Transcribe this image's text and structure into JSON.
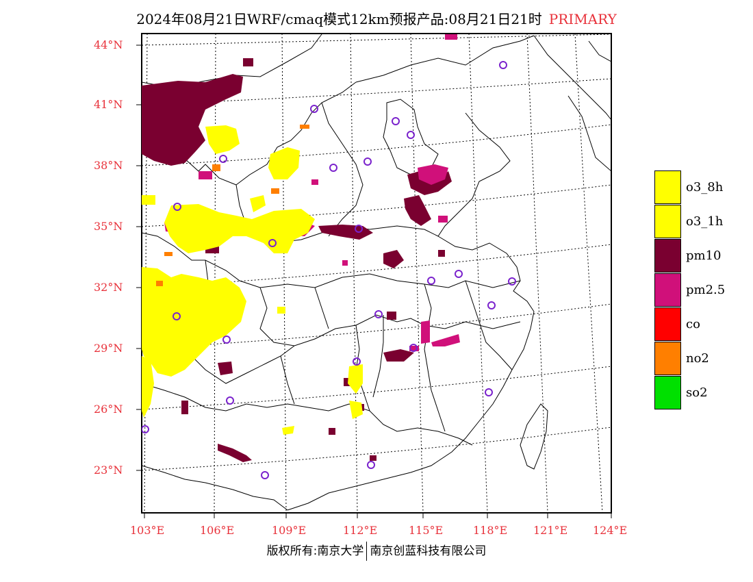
{
  "title": {
    "text": "2024年08月21日WRF/cmaq模式12km预报产品:08月21日21时",
    "tag": "PRIMARY"
  },
  "axes": {
    "lat_labels": [
      "44°N",
      "41°N",
      "38°N",
      "35°N",
      "32°N",
      "29°N",
      "26°N",
      "23°N"
    ],
    "lon_labels": [
      "103°E",
      "106°E",
      "109°E",
      "112°E",
      "115°E",
      "118°E",
      "121°E",
      "124°E"
    ]
  },
  "legend": [
    {
      "label": "o3_8h",
      "color": "#ffff00"
    },
    {
      "label": "o3_1h",
      "color": "#ffff00"
    },
    {
      "label": "pm10",
      "color": "#7a0030"
    },
    {
      "label": "pm2.5",
      "color": "#d0107a"
    },
    {
      "label": "co",
      "color": "#ff0000"
    },
    {
      "label": "no2",
      "color": "#ff7f00"
    },
    {
      "label": "so2",
      "color": "#00e000"
    }
  ],
  "footer": {
    "left": "版权所有:南京大学",
    "right": "南京创蓝科技有限公司"
  },
  "colors": {
    "label_red": "#e8313a",
    "station_circle": "#7a22cc"
  }
}
